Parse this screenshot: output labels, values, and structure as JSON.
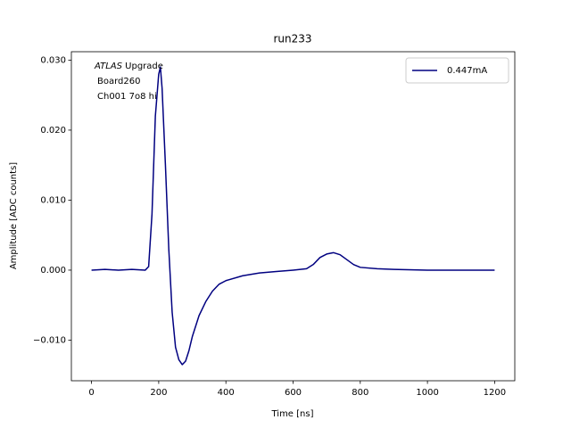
{
  "chart_data": {
    "type": "line",
    "title": "run233",
    "x_label": "Time [ns]",
    "y_label": "Amplitude [ADC counts]",
    "annotation": {
      "italic": "ATLAS",
      "text": "Upgrade",
      "lines": [
        "Board260",
        "Ch001 7o8 hi"
      ]
    },
    "x": [
      0,
      40,
      80,
      120,
      160,
      170,
      180,
      190,
      200,
      205,
      210,
      220,
      230,
      240,
      250,
      260,
      270,
      280,
      290,
      300,
      320,
      340,
      360,
      380,
      400,
      450,
      500,
      550,
      600,
      640,
      660,
      680,
      700,
      720,
      740,
      760,
      780,
      800,
      850,
      900,
      1000,
      1100,
      1200
    ],
    "series": [
      {
        "name": "0.447mA",
        "color": "#000080",
        "values": [
          0,
          0.0001,
          0,
          0.0001,
          0,
          0.0005,
          0.008,
          0.022,
          0.028,
          0.029,
          0.026,
          0.015,
          0.003,
          -0.006,
          -0.011,
          -0.0128,
          -0.0135,
          -0.013,
          -0.0115,
          -0.0095,
          -0.0065,
          -0.0045,
          -0.003,
          -0.002,
          -0.0015,
          -0.0008,
          -0.0004,
          -0.0002,
          0,
          0.0002,
          0.0008,
          0.0018,
          0.0023,
          0.0025,
          0.0022,
          0.0015,
          0.0008,
          0.0004,
          0.0002,
          0.0001,
          0,
          0,
          0
        ]
      }
    ],
    "xlim": [
      -60,
      1260
    ],
    "xticks": [
      0,
      200,
      400,
      600,
      800,
      1000,
      1200
    ],
    "ylim": [
      -0.0158,
      0.0312
    ],
    "yticks": [
      {
        "value": -0.01,
        "label": "−0.010"
      },
      {
        "value": 0,
        "label": "0.000"
      },
      {
        "value": 0.01,
        "label": "0.010"
      },
      {
        "value": 0.02,
        "label": "0.020"
      },
      {
        "value": 0.03,
        "label": "0.030"
      }
    ],
    "legend": "upper right",
    "grid": false
  }
}
